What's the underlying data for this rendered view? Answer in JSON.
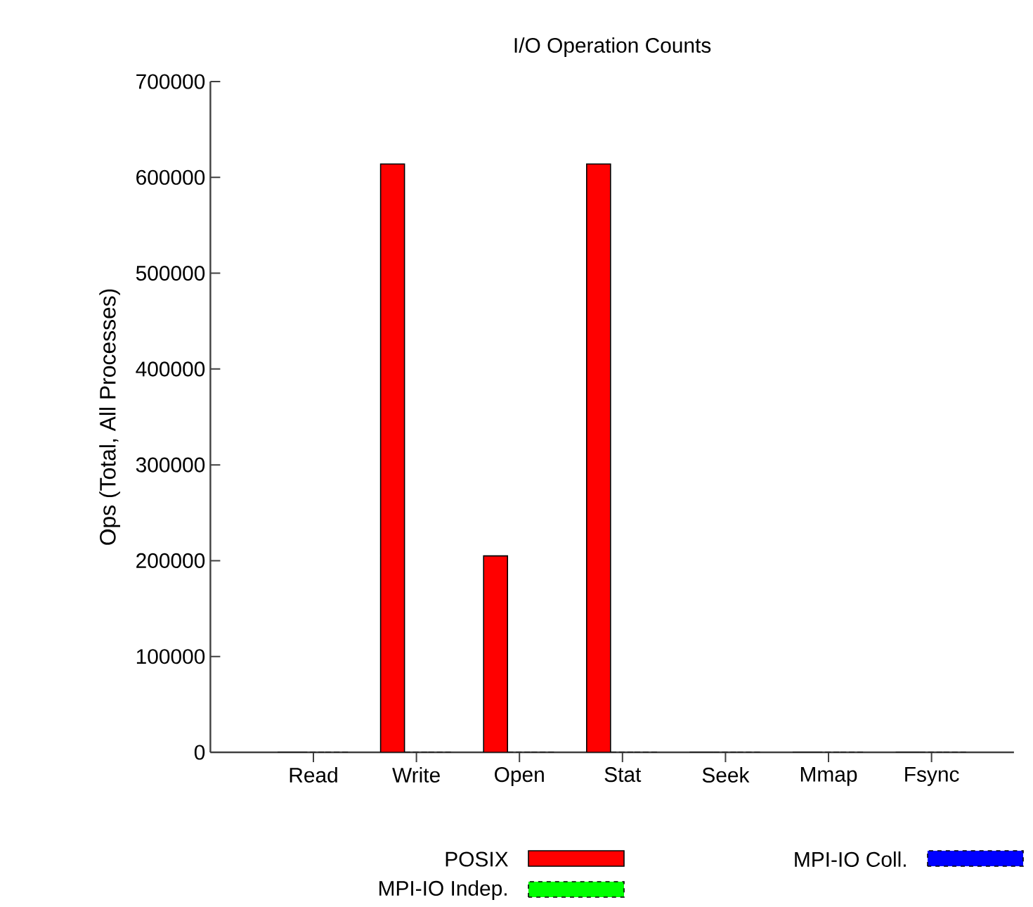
{
  "chart_data": {
    "type": "bar",
    "title": "I/O Operation Counts",
    "ylabel": "Ops (Total, All Processes)",
    "categories": [
      "Read",
      "Write",
      "Open",
      "Stat",
      "Seek",
      "Mmap",
      "Fsync"
    ],
    "series": [
      {
        "name": "POSIX",
        "color": "#ff0000",
        "line_style": "solid",
        "values": [
          0,
          614000,
          205000,
          614000,
          0,
          0,
          0
        ]
      },
      {
        "name": "MPI-IO Indep.",
        "color": "#00ff00",
        "line_style": "dashed",
        "values": [
          0,
          0,
          0,
          0,
          0,
          0,
          0
        ]
      },
      {
        "name": "MPI-IO Coll.",
        "color": "#0000ff",
        "line_style": "dashed",
        "values": [
          0,
          0,
          0,
          0,
          0,
          0,
          0
        ]
      }
    ],
    "ylim": [
      0,
      700000
    ],
    "yticks": [
      0,
      100000,
      200000,
      300000,
      400000,
      500000,
      600000,
      700000
    ],
    "grid": false,
    "legend": "bottom"
  }
}
